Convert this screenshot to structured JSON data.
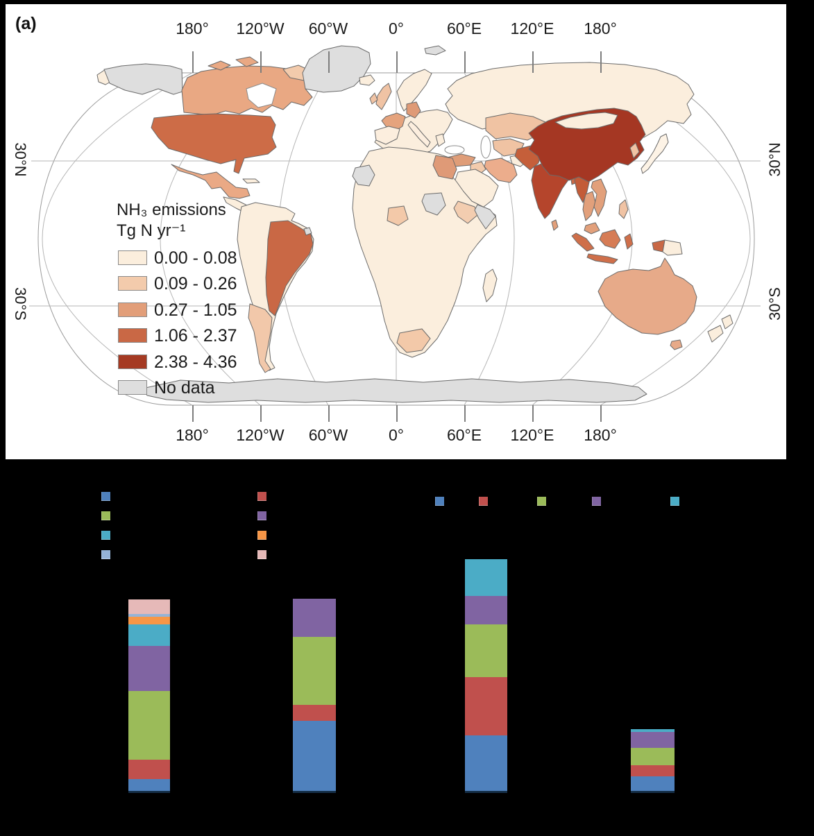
{
  "panel_a": {
    "label": "(a)",
    "lon_ticks": [
      "180°",
      "120°W",
      "60°W",
      "0°",
      "60°E",
      "120°E",
      "180°"
    ],
    "lat_labels": [
      "30°N",
      "30°S"
    ],
    "legend": {
      "title_line1": "NH₃ emissions",
      "title_line2": "Tg N yr⁻¹",
      "classes": [
        {
          "label": "0.00 - 0.08",
          "color": "#fbeedd"
        },
        {
          "label": "0.09 - 0.26",
          "color": "#f3cbac"
        },
        {
          "label": "0.27 - 1.05",
          "color": "#e29e79"
        },
        {
          "label": "1.06 - 2.37",
          "color": "#c96845"
        },
        {
          "label": "2.38 - 4.36",
          "color": "#a53a23"
        },
        {
          "label": "No data",
          "color": "#dedede"
        }
      ]
    },
    "map": {
      "ocean": "#ffffff",
      "country_border": "#6a6a6a",
      "graticule": "#b5b5b5",
      "boundary": "#9a9a9a",
      "country_fills": {
        "chukotka": "#fbeedd",
        "alaska": "#dedede",
        "canada": "#e9a883",
        "arctic1": "#e9a883",
        "arctic2": "#e9a883",
        "baffin": "#f3cbac",
        "greenland": "#dedede",
        "iceland": "#fbeedd",
        "svalbard": "#dedede",
        "usa": "#cd6c47",
        "mexico": "#eaa985",
        "centralam": "#fbeedd",
        "cuba": "#fbeedd",
        "southamerica": "#fbeedd",
        "brazil": "#c96845",
        "argentina": "#f2c8aa",
        "frenchguiana": "#dedede",
        "scandinavia": "#fbeedd",
        "europe": "#fbeedd",
        "uk": "#f0c3a4",
        "ireland": "#f0c3a4",
        "france": "#e5a37d",
        "germany": "#df9a76",
        "iberia": "#fceede",
        "italy": "#fceede",
        "greece": "#fbeedd",
        "turkey": "#df9d78",
        "russia": "#fbeedd",
        "kazakhstan": "#f0c3a3",
        "centralasia": "#f0c3a3",
        "afghanistan": "#fbeedd",
        "iraq": "#f3cbac",
        "iran": "#ecad8c",
        "saudi": "#fbeedd",
        "africa": "#fbeedd",
        "egypt": "#df9a77",
        "wsahara": "#dedede",
        "ssudan": "#dedede",
        "somalia": "#dedede",
        "ethiopia": "#f3cdb0",
        "nigeria": "#f3c9a9",
        "southafrica": "#f3c9a9",
        "madagascar": "#fbeedd",
        "pakistan": "#c55f3a",
        "india": "#b5452c",
        "srilanka": "#e2a07b",
        "bangladesh": "#c96845",
        "myanmar": "#c35c38",
        "thailand": "#e2a07b",
        "vietnam": "#e2a07b",
        "malaysia": "#e2a07b",
        "sumatra": "#cf6f4a",
        "java": "#cf6f4a",
        "borneo": "#d67c55",
        "sulawesi": "#cf6f4a",
        "philippines": "#f0c3a4",
        "wpapua": "#c96845",
        "png": "#fbeedd",
        "china": "#a53723",
        "mongolia": "#fbeedd",
        "korea": "#f0c3a4",
        "japan": "#fdf3e6",
        "australia": "#e7aa89",
        "tasmania": "#e7aa89",
        "nz1": "#fbeedd",
        "nz2": "#fbeedd",
        "antarctica": "#dedede"
      }
    }
  },
  "panel_b": {
    "background": "#000000",
    "palette": {
      "blue": "#4F81BD",
      "red": "#C0504D",
      "green": "#9BBB59",
      "purple": "#8064A2",
      "teal": "#4BACC6",
      "orange": "#F79646",
      "lightblue": "#95B3D7",
      "pink": "#E6B9B8"
    },
    "legend_grid": {
      "column1": [
        "blue",
        "green",
        "teal",
        "lightblue"
      ],
      "column2": [
        "red",
        "purple",
        "orange",
        "pink"
      ]
    },
    "legend_row": [
      "blue",
      "red",
      "green",
      "purple",
      "teal"
    ]
  },
  "chart_data": [
    {
      "type": "heatmap",
      "subtype": "choropleth-world-map",
      "title": "NH₃ emissions Tg N yr⁻¹",
      "legend_classes": [
        "0.00 - 0.08",
        "0.09 - 0.26",
        "0.27 - 1.05",
        "1.06 - 2.37",
        "2.38 - 4.36",
        "No data"
      ],
      "axis_lon_labels": [
        "180°",
        "120°W",
        "60°W",
        "0°",
        "60°E",
        "120°E",
        "180°"
      ],
      "axis_lat_labels": [
        "30°N",
        "30°S"
      ],
      "notable_values": {
        "China": "2.38 - 4.36",
        "India": "2.38 - 4.36",
        "United States": "1.06 - 2.37",
        "Brazil": "1.06 - 2.37",
        "Pakistan": "1.06 - 2.37",
        "Myanmar": "1.06 - 2.37",
        "Indonesia": "1.06 - 2.37",
        "Canada": "0.27 - 1.05",
        "Mexico": "0.27 - 1.05",
        "France": "0.27 - 1.05",
        "Germany": "0.27 - 1.05",
        "Turkey": "0.27 - 1.05",
        "Iran": "0.27 - 1.05",
        "Egypt": "0.27 - 1.05",
        "Australia": "0.27 - 1.05",
        "Argentina": "0.09 - 0.26",
        "Russia": "0.00 - 0.08",
        "no_data_regions": [
          "Alaska",
          "Greenland",
          "Western Sahara",
          "South Sudan",
          "Somalia",
          "French Guiana",
          "Antarctica"
        ]
      }
    },
    {
      "type": "bar",
      "stacked": true,
      "note": "Lower panel axis text and labels are black-on-black in the source image (not legible); segment values are measured pixel heights (relative units).",
      "series_order_bottom_to_top": [
        "blue",
        "red",
        "green",
        "purple",
        "teal",
        "orange",
        "lightblue",
        "pink"
      ],
      "bars": [
        {
          "segments": {
            "blue": 17,
            "red": 28,
            "green": 99,
            "purple": 65,
            "teal": 31,
            "orange": 11,
            "lightblue": 4,
            "pink": 21
          }
        },
        {
          "segments": {
            "blue": 101,
            "red": 23,
            "green": 98,
            "purple": 55
          }
        },
        {
          "segments": {
            "blue": 80,
            "red": 84,
            "green": 76,
            "purple": 41,
            "teal": 53
          }
        },
        {
          "segments": {
            "blue": 21,
            "red": 16,
            "green": 25,
            "purple": 23,
            "teal": 4
          }
        }
      ]
    }
  ]
}
